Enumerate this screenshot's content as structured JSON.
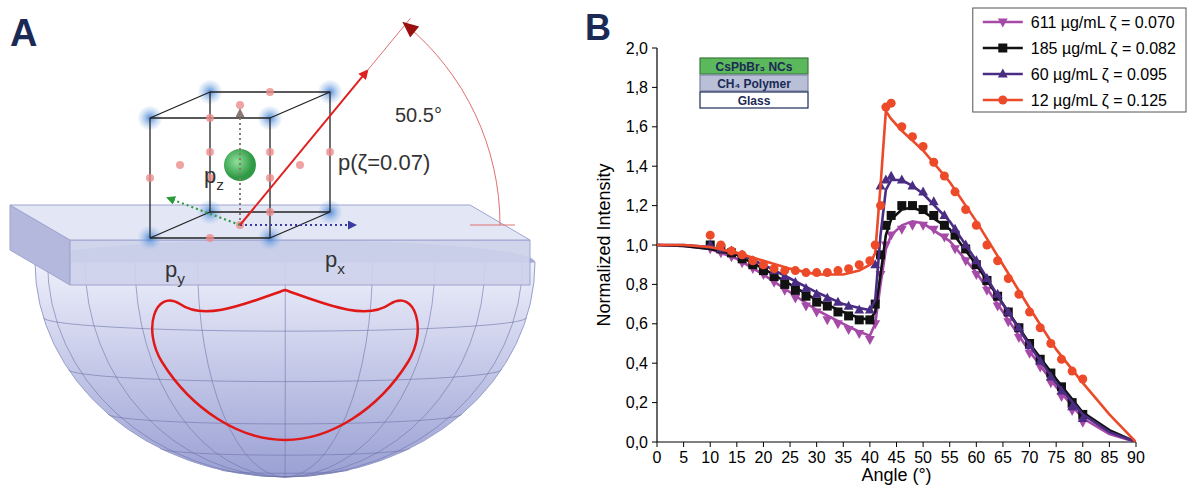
{
  "diagram": {
    "panel_label": "A",
    "components": [
      "pz",
      "py",
      "px"
    ],
    "dipole_label": "p(ζ=0.07)",
    "angle": 50.5,
    "angle_label": "50.5°"
  },
  "chart_data": {
    "type": "line",
    "panel_label": "B",
    "x_label": "Angle (°)",
    "y_label": "Normalized Intensity",
    "annotations": [
      "CsPbBr₃ NCs",
      "CH₄ Polymer",
      "Glass"
    ],
    "xlim": [
      0,
      90
    ],
    "ylim": [
      0,
      2.0
    ],
    "xticks": [
      0,
      5,
      10,
      15,
      20,
      25,
      30,
      35,
      40,
      45,
      50,
      55,
      60,
      65,
      70,
      75,
      80,
      85,
      90
    ],
    "yticks": [
      {
        "value": 0,
        "label": "0,0"
      },
      {
        "value": 0.2,
        "label": "0,2"
      },
      {
        "value": 0.4,
        "label": "0,4"
      },
      {
        "value": 0.6,
        "label": "0,6"
      },
      {
        "value": 0.8,
        "label": "0,8"
      },
      {
        "value": 1.0,
        "label": "1,0"
      },
      {
        "value": 1.2,
        "label": "1,2"
      },
      {
        "value": 1.4,
        "label": "1,4"
      },
      {
        "value": 1.6,
        "label": "1,6"
      },
      {
        "value": 1.8,
        "label": "1,8"
      },
      {
        "value": 2.0,
        "label": "2,0"
      }
    ],
    "legend": "upper right",
    "series": [
      {
        "name": "611 µg/mL ζ = 0.070",
        "color": "#a64aa8",
        "marker": "triangle-down",
        "x": [
          10,
          12,
          14,
          16,
          18,
          20,
          22,
          24,
          26,
          28,
          30,
          32,
          34,
          36,
          38,
          40,
          41,
          42,
          43,
          44,
          46,
          48,
          50,
          52,
          54,
          56,
          58,
          60,
          62,
          64,
          66,
          68,
          70,
          72,
          74,
          76,
          78,
          80
        ],
        "values": [
          0.98,
          0.96,
          0.94,
          0.91,
          0.88,
          0.85,
          0.81,
          0.77,
          0.73,
          0.69,
          0.66,
          0.62,
          0.6,
          0.57,
          0.55,
          0.52,
          0.6,
          0.85,
          1.0,
          1.05,
          1.08,
          1.1,
          1.1,
          1.08,
          1.04,
          0.98,
          0.92,
          0.85,
          0.77,
          0.69,
          0.61,
          0.53,
          0.45,
          0.38,
          0.3,
          0.23,
          0.16,
          0.1
        ],
        "fit_x": [
          0,
          5,
          10,
          15,
          20,
          25,
          30,
          35,
          38,
          40,
          41,
          42,
          43,
          44,
          46,
          48,
          50,
          55,
          60,
          65,
          70,
          75,
          80,
          85,
          90
        ],
        "fit_values": [
          1,
          0.995,
          0.98,
          0.93,
          0.85,
          0.76,
          0.67,
          0.6,
          0.56,
          0.54,
          0.6,
          0.8,
          0.98,
          1.05,
          1.1,
          1.12,
          1.11,
          1.02,
          0.86,
          0.66,
          0.46,
          0.28,
          0.12,
          0.04,
          0
        ]
      },
      {
        "name": "185 µg/mL ζ = 0.082",
        "color": "#111111",
        "marker": "square",
        "x": [
          10,
          12,
          14,
          16,
          18,
          20,
          22,
          24,
          26,
          28,
          30,
          32,
          34,
          36,
          38,
          40,
          41,
          42,
          43,
          44,
          46,
          48,
          50,
          52,
          54,
          56,
          58,
          60,
          62,
          64,
          66,
          68,
          70,
          72,
          74,
          76,
          78,
          80
        ],
        "values": [
          1.0,
          0.98,
          0.96,
          0.93,
          0.9,
          0.87,
          0.84,
          0.8,
          0.77,
          0.74,
          0.71,
          0.69,
          0.66,
          0.64,
          0.62,
          0.62,
          0.7,
          0.95,
          1.1,
          1.15,
          1.2,
          1.2,
          1.18,
          1.15,
          1.1,
          1.05,
          0.98,
          0.9,
          0.82,
          0.74,
          0.66,
          0.58,
          0.5,
          0.42,
          0.35,
          0.28,
          0.2,
          0.14
        ],
        "fit_x": [
          0,
          5,
          10,
          15,
          20,
          25,
          30,
          35,
          38,
          40,
          41,
          42,
          43,
          44,
          46,
          48,
          50,
          55,
          60,
          65,
          70,
          75,
          80,
          85,
          90
        ],
        "fit_values": [
          1,
          0.995,
          0.98,
          0.95,
          0.88,
          0.8,
          0.72,
          0.66,
          0.63,
          0.62,
          0.66,
          0.85,
          1.05,
          1.13,
          1.18,
          1.19,
          1.17,
          1.08,
          0.9,
          0.7,
          0.5,
          0.32,
          0.15,
          0.06,
          0
        ]
      },
      {
        "name": "60 µg/mL ζ = 0.095",
        "color": "#4a2d82",
        "marker": "triangle-up",
        "x": [
          10,
          12,
          14,
          16,
          18,
          20,
          22,
          24,
          26,
          28,
          30,
          32,
          34,
          36,
          38,
          40,
          41,
          42,
          43,
          44,
          46,
          48,
          50,
          52,
          54,
          56,
          58,
          60,
          62,
          64,
          66,
          68,
          70,
          72,
          74,
          76,
          78,
          80
        ],
        "values": [
          1.0,
          0.98,
          0.97,
          0.95,
          0.92,
          0.9,
          0.87,
          0.84,
          0.81,
          0.78,
          0.75,
          0.73,
          0.71,
          0.69,
          0.67,
          0.67,
          0.9,
          1.3,
          1.33,
          1.35,
          1.33,
          1.3,
          1.27,
          1.22,
          1.15,
          1.08,
          1.0,
          0.92,
          0.83,
          0.75,
          0.66,
          0.58,
          0.49,
          0.41,
          0.33,
          0.26,
          0.18,
          0.12
        ],
        "fit_x": [
          0,
          5,
          10,
          15,
          20,
          25,
          30,
          35,
          38,
          40,
          41,
          42,
          43,
          44,
          46,
          48,
          50,
          55,
          60,
          65,
          70,
          75,
          80,
          85,
          90
        ],
        "fit_values": [
          1,
          1,
          0.99,
          0.96,
          0.9,
          0.83,
          0.76,
          0.7,
          0.68,
          0.67,
          0.72,
          1.05,
          1.28,
          1.33,
          1.33,
          1.3,
          1.26,
          1.12,
          0.92,
          0.7,
          0.49,
          0.3,
          0.14,
          0.05,
          0
        ]
      },
      {
        "name": "12 µg/mL ζ = 0.125",
        "color": "#ec4a28",
        "marker": "circle",
        "x": [
          10,
          12,
          14,
          16,
          18,
          20,
          22,
          24,
          26,
          28,
          30,
          32,
          34,
          36,
          38,
          40,
          41,
          42,
          43,
          44,
          46,
          48,
          50,
          52,
          54,
          56,
          58,
          60,
          62,
          64,
          66,
          68,
          70,
          72,
          74,
          76,
          78,
          80
        ],
        "values": [
          1.05,
          1.0,
          0.97,
          0.95,
          0.92,
          0.9,
          0.88,
          0.87,
          0.87,
          0.86,
          0.86,
          0.86,
          0.87,
          0.88,
          0.9,
          0.92,
          1.0,
          1.2,
          1.7,
          1.72,
          1.6,
          1.55,
          1.5,
          1.42,
          1.35,
          1.27,
          1.18,
          1.1,
          1.0,
          0.92,
          0.83,
          0.75,
          0.66,
          0.58,
          0.5,
          0.42,
          0.36,
          0.32
        ],
        "fit_x": [
          0,
          5,
          10,
          15,
          20,
          25,
          30,
          35,
          38,
          40,
          41,
          42,
          43,
          44,
          46,
          48,
          50,
          55,
          60,
          65,
          70,
          75,
          80,
          85,
          90
        ],
        "fit_values": [
          1,
          1,
          0.99,
          0.96,
          0.92,
          0.88,
          0.85,
          0.85,
          0.87,
          0.9,
          0.96,
          1.3,
          1.68,
          1.64,
          1.58,
          1.53,
          1.48,
          1.32,
          1.12,
          0.9,
          0.68,
          0.47,
          0.3,
          0.14,
          0
        ]
      }
    ]
  }
}
